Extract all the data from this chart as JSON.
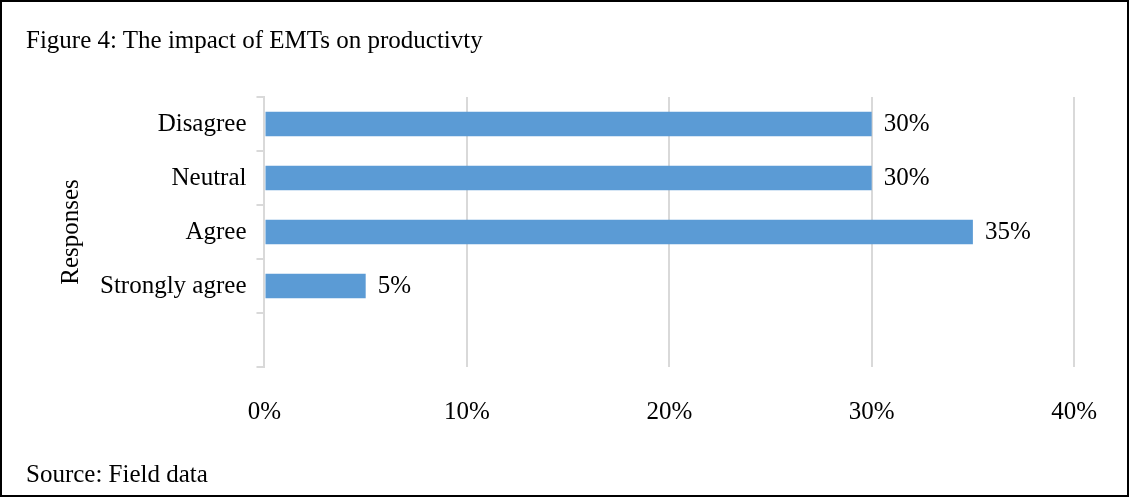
{
  "chart_data": {
    "type": "bar",
    "orientation": "horizontal",
    "title": "Figure 4: The impact of EMTs on productivty",
    "ylabel": "Responses",
    "categories": [
      "Disagree",
      "Neutral",
      "Agree",
      "Strongly agree",
      null
    ],
    "values": [
      30,
      30,
      35,
      5,
      null
    ],
    "value_labels": [
      "30%",
      "30%",
      "35%",
      "5%",
      null
    ],
    "color": "#5b9bd5",
    "xlim": [
      0,
      40
    ],
    "xticks": [
      {
        "value": 0,
        "label": "0%"
      },
      {
        "value": 10,
        "label": "10%"
      },
      {
        "value": 20,
        "label": "20%"
      },
      {
        "value": 30,
        "label": "30%"
      },
      {
        "value": 40,
        "label": "40%"
      }
    ],
    "grid": "x",
    "legend": false,
    "annotations": [
      "Source: Field data"
    ]
  }
}
